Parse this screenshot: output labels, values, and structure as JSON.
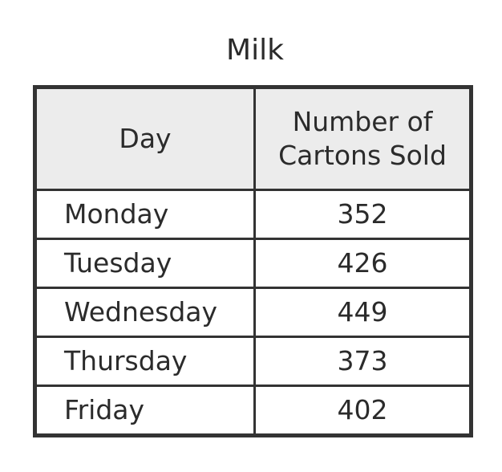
{
  "chart_data": {
    "type": "table",
    "title": "Milk",
    "columns": [
      "Day",
      "Number of Cartons Sold"
    ],
    "header_lines": {
      "day": "Day",
      "count_line1": "Number of",
      "count_line2": "Cartons Sold"
    },
    "rows": [
      {
        "day": "Monday",
        "count": "352"
      },
      {
        "day": "Tuesday",
        "count": "426"
      },
      {
        "day": "Wednesday",
        "count": "449"
      },
      {
        "day": "Thursday",
        "count": "373"
      },
      {
        "day": "Friday",
        "count": "402"
      }
    ]
  }
}
